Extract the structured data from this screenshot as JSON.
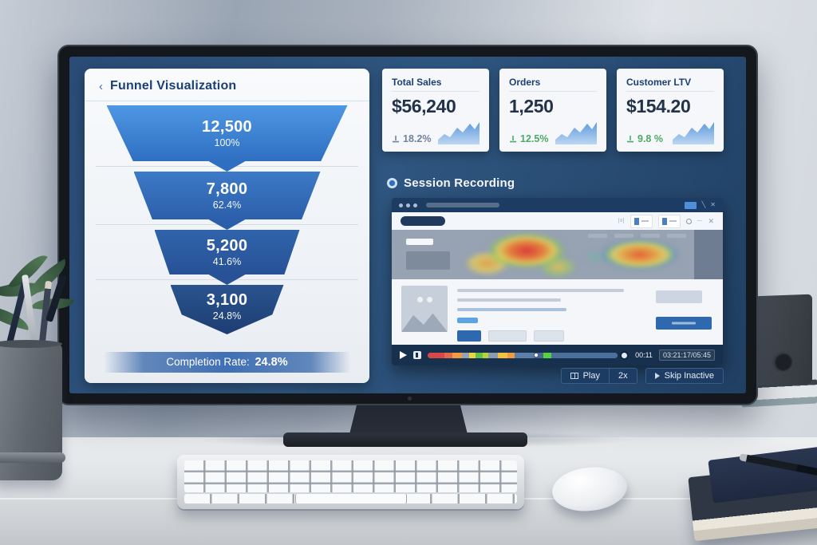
{
  "funnel": {
    "back_icon": "‹",
    "title": "Funnel Visualization",
    "stages": [
      {
        "value": "12,500",
        "percent": "100%"
      },
      {
        "value": "7,800",
        "percent": "62.4%"
      },
      {
        "value": "5,200",
        "percent": "41.6%"
      },
      {
        "value": "3,100",
        "percent": "24.8%"
      }
    ],
    "completion_label": "Completion Rate:",
    "completion_value": "24.8%"
  },
  "kpis": [
    {
      "title": "Total Sales",
      "value": "$56,240",
      "delta": "18.2%",
      "delta_color": "#72839a"
    },
    {
      "title": "Orders",
      "value": "1,250",
      "delta": "12.5%",
      "delta_color": "#4fa968"
    },
    {
      "title": "Customer LTV",
      "value": "$154.20",
      "delta": "9.8 %",
      "delta_color": "#4fa968"
    }
  ],
  "session": {
    "title": "Session Recording",
    "player": {
      "current_time": "00:11",
      "total_time": "03:21:17/05:45"
    },
    "buttons": {
      "play": "Play",
      "speed": "2x",
      "skip": "Skip Inactive"
    },
    "timeline_segments": [
      {
        "color": "#d94848",
        "w": 9
      },
      {
        "color": "#e06a4a",
        "w": 4
      },
      {
        "color": "#ef9b43",
        "w": 5
      },
      {
        "color": "#93a3b6",
        "w": 4
      },
      {
        "color": "#e4d93f",
        "w": 3
      },
      {
        "color": "#63c24b",
        "w": 4
      },
      {
        "color": "#b5d43c",
        "w": 3
      },
      {
        "color": "#8b9cb1",
        "w": 5
      },
      {
        "color": "#f2c13e",
        "w": 5
      },
      {
        "color": "#ef9b43",
        "w": 4
      },
      {
        "color": "#5d7ea6",
        "w": 10
      },
      {
        "color": "#49688f",
        "w": 5
      },
      {
        "color": "#58d13e",
        "w": 4
      },
      {
        "color": "#4c6f9b",
        "w": 35
      }
    ]
  },
  "colors": {
    "screen_background": "#2f5680",
    "funnel_top": "#4e97e3",
    "funnel_bottom": "#1d3d72",
    "kpi_green": "#4fa968",
    "accent_blue": "#2e68ae"
  }
}
